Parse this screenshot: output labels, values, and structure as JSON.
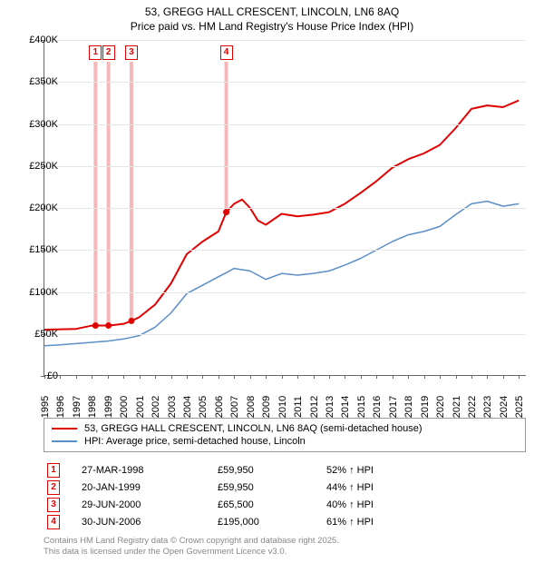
{
  "title_line1": "53, GREGG HALL CRESCENT, LINCOLN, LN6 8AQ",
  "title_line2": "Price paid vs. HM Land Registry's House Price Index (HPI)",
  "chart": {
    "type": "line",
    "background_color": "#ffffff",
    "grid_color": "#e5e5e5",
    "axis_color": "#666666",
    "x_years": [
      1995,
      1996,
      1997,
      1998,
      1999,
      2000,
      2001,
      2002,
      2003,
      2004,
      2005,
      2006,
      2007,
      2008,
      2009,
      2010,
      2011,
      2012,
      2013,
      2014,
      2015,
      2016,
      2017,
      2018,
      2019,
      2020,
      2021,
      2022,
      2023,
      2024,
      2025
    ],
    "y_ticks": [
      0,
      50000,
      100000,
      150000,
      200000,
      250000,
      300000,
      350000,
      400000
    ],
    "y_tick_labels": [
      "£0",
      "£50K",
      "£100K",
      "£150K",
      "£200K",
      "£250K",
      "£300K",
      "£350K",
      "£400K"
    ],
    "ymin": 0,
    "ymax": 400000,
    "xmin": 1995,
    "xmax": 2025.5,
    "series": [
      {
        "name": "53, GREGG HALL CRESCENT, LINCOLN, LN6 8AQ (semi-detached house)",
        "color": "#e00000",
        "line_width": 2,
        "data": [
          [
            1995,
            55000
          ],
          [
            1996,
            55500
          ],
          [
            1997,
            56000
          ],
          [
            1998,
            59950
          ],
          [
            1998.2,
            59950
          ],
          [
            1999,
            59950
          ],
          [
            1999.05,
            59950
          ],
          [
            2000,
            62000
          ],
          [
            2000.5,
            65500
          ],
          [
            2001,
            70000
          ],
          [
            2002,
            85000
          ],
          [
            2003,
            110000
          ],
          [
            2004,
            145000
          ],
          [
            2005,
            160000
          ],
          [
            2006,
            172000
          ],
          [
            2006.5,
            195000
          ],
          [
            2007,
            205000
          ],
          [
            2007.5,
            210000
          ],
          [
            2008,
            200000
          ],
          [
            2008.5,
            185000
          ],
          [
            2009,
            180000
          ],
          [
            2010,
            193000
          ],
          [
            2011,
            190000
          ],
          [
            2012,
            192000
          ],
          [
            2013,
            195000
          ],
          [
            2014,
            205000
          ],
          [
            2015,
            218000
          ],
          [
            2016,
            232000
          ],
          [
            2017,
            248000
          ],
          [
            2018,
            258000
          ],
          [
            2019,
            265000
          ],
          [
            2020,
            275000
          ],
          [
            2021,
            295000
          ],
          [
            2022,
            318000
          ],
          [
            2023,
            322000
          ],
          [
            2024,
            320000
          ],
          [
            2025,
            328000
          ]
        ]
      },
      {
        "name": "HPI: Average price, semi-detached house, Lincoln",
        "color": "#5b8fc7",
        "line_width": 1.5,
        "data": [
          [
            1995,
            36000
          ],
          [
            1996,
            37000
          ],
          [
            1997,
            38500
          ],
          [
            1998,
            40000
          ],
          [
            1999,
            41500
          ],
          [
            2000,
            44000
          ],
          [
            2001,
            48000
          ],
          [
            2002,
            58000
          ],
          [
            2003,
            75000
          ],
          [
            2004,
            98000
          ],
          [
            2005,
            108000
          ],
          [
            2006,
            118000
          ],
          [
            2007,
            128000
          ],
          [
            2008,
            125000
          ],
          [
            2009,
            115000
          ],
          [
            2010,
            122000
          ],
          [
            2011,
            120000
          ],
          [
            2012,
            122000
          ],
          [
            2013,
            125000
          ],
          [
            2014,
            132000
          ],
          [
            2015,
            140000
          ],
          [
            2016,
            150000
          ],
          [
            2017,
            160000
          ],
          [
            2018,
            168000
          ],
          [
            2019,
            172000
          ],
          [
            2020,
            178000
          ],
          [
            2021,
            192000
          ],
          [
            2022,
            205000
          ],
          [
            2023,
            208000
          ],
          [
            2024,
            202000
          ],
          [
            2025,
            205000
          ]
        ]
      }
    ],
    "sale_markers": [
      {
        "n": "1",
        "x": 1998.23,
        "color": "#e00000",
        "price_y": 59950
      },
      {
        "n": "2",
        "x": 1999.05,
        "color": "#e00000",
        "price_y": 59950
      },
      {
        "n": "3",
        "x": 2000.5,
        "color": "#e00000",
        "price_y": 65500
      },
      {
        "n": "4",
        "x": 2006.5,
        "color": "#e00000",
        "price_y": 195000
      }
    ]
  },
  "legend": {
    "items": [
      {
        "label": "53, GREGG HALL CRESCENT, LINCOLN, LN6 8AQ (semi-detached house)",
        "color": "#e00000",
        "width": 2
      },
      {
        "label": "HPI: Average price, semi-detached house, Lincoln",
        "color": "#5b8fc7",
        "width": 1.5
      }
    ]
  },
  "sales_table": {
    "rows": [
      {
        "n": "1",
        "date": "27-MAR-1998",
        "price": "£59,950",
        "pct": "52% ↑ HPI",
        "color": "#e00000"
      },
      {
        "n": "2",
        "date": "20-JAN-1999",
        "price": "£59,950",
        "pct": "44% ↑ HPI",
        "color": "#e00000"
      },
      {
        "n": "3",
        "date": "29-JUN-2000",
        "price": "£65,500",
        "pct": "40% ↑ HPI",
        "color": "#e00000"
      },
      {
        "n": "4",
        "date": "30-JUN-2006",
        "price": "£195,000",
        "pct": "61% ↑ HPI",
        "color": "#e00000"
      }
    ]
  },
  "footer_line1": "Contains HM Land Registry data © Crown copyright and database right 2025.",
  "footer_line2": "This data is licensed under the Open Government Licence v3.0."
}
